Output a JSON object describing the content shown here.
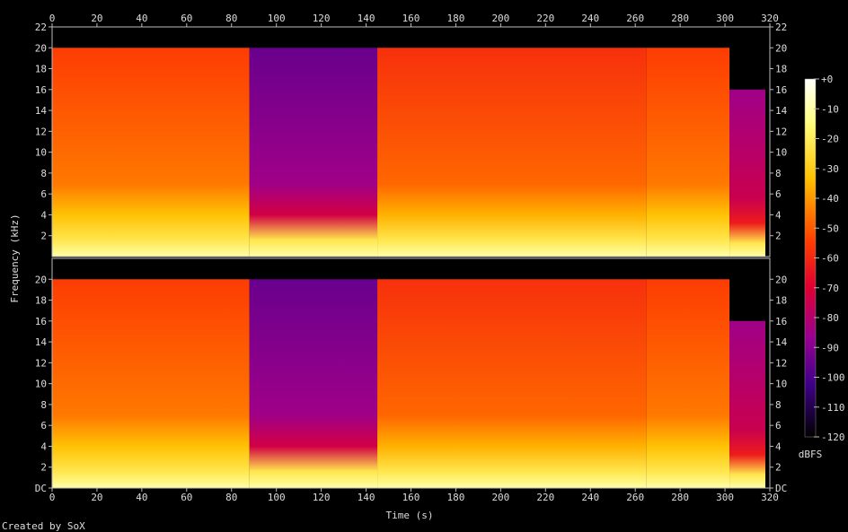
{
  "chart_data": {
    "type": "heatmap",
    "xlabel": "Time (s)",
    "ylabel": "Frequency (kHz)",
    "colorbar_label": "dBFS",
    "credit": "Created by SoX",
    "xlim": [
      0,
      320
    ],
    "ylim": [
      0,
      22
    ],
    "x_ticks": [
      "0",
      "20",
      "40",
      "60",
      "80",
      "100",
      "120",
      "140",
      "160",
      "180",
      "200",
      "220",
      "240",
      "260",
      "280",
      "300",
      "320"
    ],
    "y_ticks_top": [
      "2",
      "4",
      "6",
      "8",
      "10",
      "12",
      "14",
      "16",
      "18",
      "20",
      "22"
    ],
    "y_ticks_bottom": [
      "DC",
      "2",
      "4",
      "6",
      "8",
      "10",
      "12",
      "14",
      "16",
      "18",
      "20"
    ],
    "colorbar_ticks": [
      "+0",
      "-10",
      "-20",
      "-30",
      "-40",
      "-50",
      "-60",
      "-70",
      "-80",
      "-90",
      "-100",
      "-110",
      "-120"
    ],
    "color_range_dbfs": [
      -120,
      0
    ],
    "channels": [
      {
        "segments": [
          {
            "t_start": 0,
            "t_end": 88,
            "level_db": -55,
            "cutoff_khz": 20
          },
          {
            "t_start": 88,
            "t_end": 145,
            "level_db": -95,
            "cutoff_khz": 20
          },
          {
            "t_start": 145,
            "t_end": 265,
            "level_db": -58,
            "cutoff_khz": 20
          },
          {
            "t_start": 265,
            "t_end": 302,
            "level_db": -55,
            "cutoff_khz": 20
          },
          {
            "t_start": 302,
            "t_end": 318,
            "level_db": -85,
            "cutoff_khz": 16
          }
        ]
      },
      {
        "segments": [
          {
            "t_start": 0,
            "t_end": 88,
            "level_db": -55,
            "cutoff_khz": 20
          },
          {
            "t_start": 88,
            "t_end": 145,
            "level_db": -95,
            "cutoff_khz": 20
          },
          {
            "t_start": 145,
            "t_end": 265,
            "level_db": -58,
            "cutoff_khz": 20
          },
          {
            "t_start": 265,
            "t_end": 302,
            "level_db": -55,
            "cutoff_khz": 20
          },
          {
            "t_start": 302,
            "t_end": 318,
            "level_db": -85,
            "cutoff_khz": 16
          }
        ]
      }
    ]
  }
}
